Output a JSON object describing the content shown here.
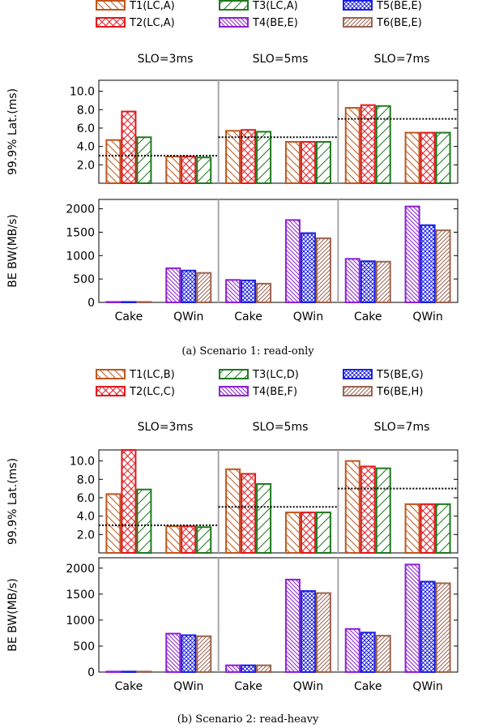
{
  "colors": {
    "T1": "#c0561b",
    "T2": "#e3181d",
    "T3": "#1e7a1e",
    "T4": "#8d1fd6",
    "T5": "#1a1fe0",
    "T6": "#9c6450",
    "slo_line": "#000000",
    "divider": "#a6a6a6"
  },
  "chart_data": [
    {
      "type": "bar",
      "panel": "scenario-1-latency",
      "caption": "(a) Scenario 1: read-only",
      "ylabel": "99.9% Lat.(ms)",
      "ylim": [
        0,
        11.2
      ],
      "yticks": [
        "2.0",
        "4.0",
        "6.0",
        "8.0",
        "10.0"
      ],
      "groups": [
        "SLO=3ms",
        "SLO=5ms",
        "SLO=7ms"
      ],
      "slo": [
        3,
        5,
        7
      ],
      "categories": [
        "Cake",
        "QWin",
        "Cake",
        "QWin",
        "Cake",
        "QWin"
      ],
      "series": [
        {
          "name": "T1(LC,A)",
          "values": [
            4.7,
            2.9,
            5.7,
            4.5,
            8.2,
            5.5
          ]
        },
        {
          "name": "T2(LC,A)",
          "values": [
            7.8,
            2.9,
            5.8,
            4.5,
            8.5,
            5.5
          ]
        },
        {
          "name": "T3(LC,A)",
          "values": [
            5.0,
            2.8,
            5.6,
            4.5,
            8.4,
            5.5
          ]
        }
      ]
    },
    {
      "type": "bar",
      "panel": "scenario-1-bandwidth",
      "ylabel": "BE BW(MB/s)",
      "ylim": [
        0,
        2200
      ],
      "yticks": [
        "0",
        "500",
        "1000",
        "1500",
        "2000"
      ],
      "categories": [
        "Cake",
        "QWin",
        "Cake",
        "QWin",
        "Cake",
        "QWin"
      ],
      "series": [
        {
          "name": "T4(BE,E)",
          "values": [
            10,
            730,
            480,
            1760,
            930,
            2050
          ]
        },
        {
          "name": "T5(BE,E)",
          "values": [
            10,
            680,
            470,
            1480,
            880,
            1650
          ]
        },
        {
          "name": "T6(BE,E)",
          "values": [
            10,
            630,
            400,
            1370,
            870,
            1540
          ]
        }
      ]
    },
    {
      "type": "bar",
      "panel": "scenario-2-latency",
      "caption": "(b) Scenario 2: read-heavy",
      "ylabel": "99.9% Lat.(ms)",
      "ylim": [
        0,
        11.2
      ],
      "yticks": [
        "2.0",
        "4.0",
        "6.0",
        "8.0",
        "10.0"
      ],
      "groups": [
        "SLO=3ms",
        "SLO=5ms",
        "SLO=7ms"
      ],
      "slo": [
        3,
        5,
        7
      ],
      "categories": [
        "Cake",
        "QWin",
        "Cake",
        "QWin",
        "Cake",
        "QWin"
      ],
      "series": [
        {
          "name": "T1(LC,B)",
          "values": [
            6.4,
            2.9,
            9.1,
            4.4,
            10.0,
            5.3
          ]
        },
        {
          "name": "T2(LC,C)",
          "values": [
            11.2,
            2.9,
            8.6,
            4.4,
            9.4,
            5.3
          ]
        },
        {
          "name": "T3(LC,D)",
          "values": [
            6.9,
            2.8,
            7.5,
            4.4,
            9.2,
            5.3
          ]
        }
      ]
    },
    {
      "type": "bar",
      "panel": "scenario-2-bandwidth",
      "ylabel": "BE BW(MB/s)",
      "ylim": [
        0,
        2200
      ],
      "yticks": [
        "0",
        "500",
        "1000",
        "1500",
        "2000"
      ],
      "categories": [
        "Cake",
        "QWin",
        "Cake",
        "QWin",
        "Cake",
        "QWin"
      ],
      "series": [
        {
          "name": "T4(BE,F)",
          "values": [
            10,
            740,
            130,
            1780,
            830,
            2070
          ]
        },
        {
          "name": "T5(BE,G)",
          "values": [
            10,
            710,
            130,
            1560,
            760,
            1740
          ]
        },
        {
          "name": "T6(BE,H)",
          "values": [
            10,
            690,
            130,
            1520,
            700,
            1710
          ]
        }
      ]
    }
  ]
}
